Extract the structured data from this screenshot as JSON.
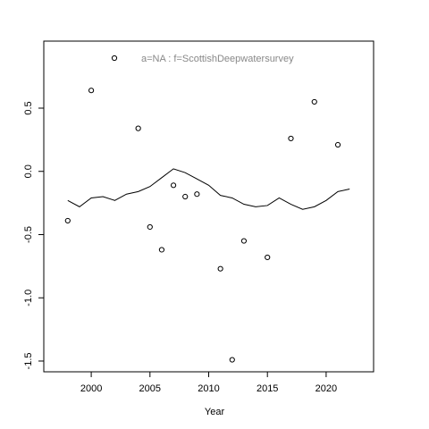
{
  "chart_data": {
    "type": "scatter",
    "xlabel": "Year",
    "xlim": [
      1995.96,
      2024.04
    ],
    "xticks": [
      2000,
      2005,
      2010,
      2015,
      2020
    ],
    "ylim": [
      -1.585,
      1.03
    ],
    "yticks": [
      0.5,
      {
        "value": 0,
        "label": "0.0"
      },
      -0.5,
      {
        "value": -1,
        "label": "-1.0"
      },
      -1.5
    ],
    "legend": "top",
    "series": [
      {
        "name": "a=NA  :  f=ScottishDeepwatersurvey",
        "mode": "points",
        "color": "#000000",
        "x": [
          1998,
          2000,
          2004,
          2005,
          2006,
          2007,
          2008,
          2009,
          2011,
          2012,
          2013,
          2015,
          2017,
          2019,
          2021
        ],
        "values": [
          -0.39,
          0.64,
          0.34,
          -0.44,
          -0.62,
          -0.11,
          -0.2,
          -0.18,
          -0.77,
          -1.49,
          -0.55,
          -0.68,
          0.26,
          0.55,
          0.21
        ]
      },
      {
        "mode": "line",
        "color": "#000000",
        "x": [
          1998,
          1999,
          2000,
          2001,
          2002,
          2003,
          2004,
          2005,
          2006,
          2007,
          2008,
          2009,
          2010,
          2011,
          2012,
          2013,
          2014,
          2015,
          2016,
          2017,
          2018,
          2019,
          2020,
          2021,
          2022
        ],
        "values": [
          -0.23,
          -0.28,
          -0.21,
          -0.2,
          -0.23,
          -0.18,
          -0.16,
          -0.12,
          -0.05,
          0.02,
          -0.01,
          -0.06,
          -0.11,
          -0.19,
          -0.21,
          -0.26,
          -0.28,
          -0.27,
          -0.21,
          -0.26,
          -0.3,
          -0.28,
          -0.23,
          -0.16,
          -0.14
        ]
      }
    ]
  }
}
